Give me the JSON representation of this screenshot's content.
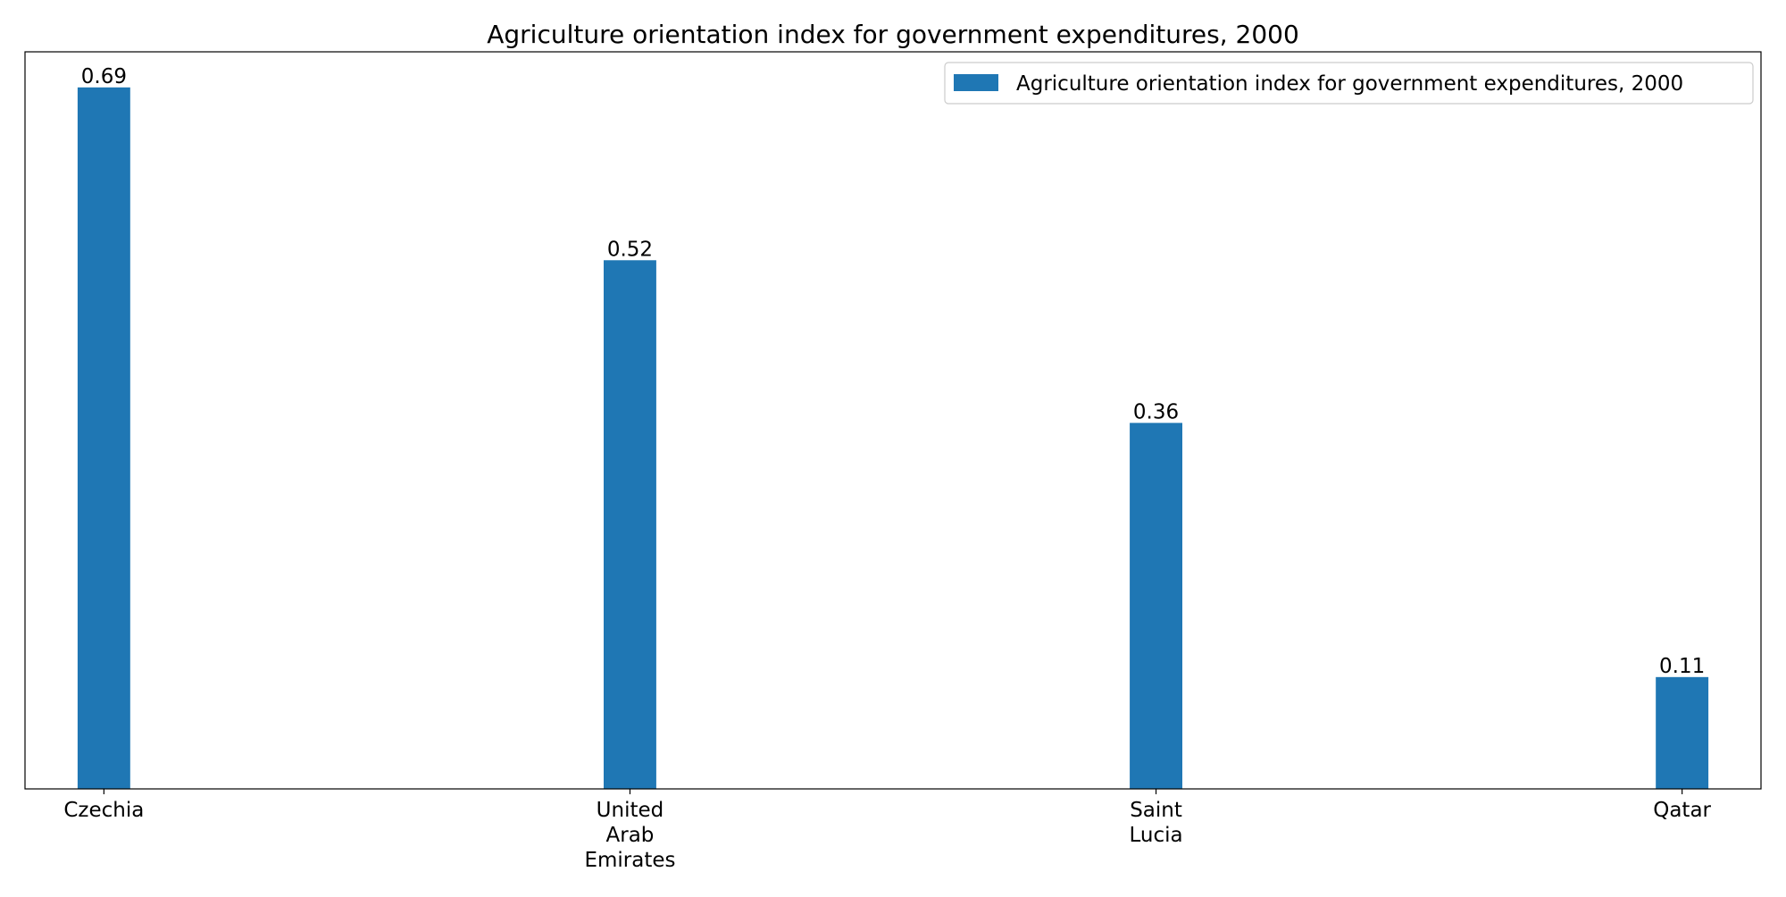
{
  "chart_data": {
    "type": "bar",
    "title": "Agriculture orientation index for government expenditures, 2000",
    "categories": [
      [
        "Czechia"
      ],
      [
        "United",
        "Arab",
        "Emirates"
      ],
      [
        "Saint",
        "Lucia"
      ],
      [
        "Qatar"
      ]
    ],
    "values": [
      0.69,
      0.52,
      0.36,
      0.11
    ],
    "value_labels": [
      "0.69",
      "0.52",
      "0.36",
      "0.11"
    ],
    "series": [
      {
        "name": "Agriculture orientation index for government expenditures, 2000",
        "values": [
          0.69,
          0.52,
          0.36,
          0.11
        ]
      }
    ],
    "xlabel": "",
    "ylabel": "",
    "ylim": [
      0,
      0.725
    ],
    "grid": false,
    "legend_position": "top-right",
    "y_ticks_visible": false,
    "colors": {
      "bar": "#1f77b4",
      "axes": "#000000",
      "legend_border": "#cccccc"
    }
  }
}
